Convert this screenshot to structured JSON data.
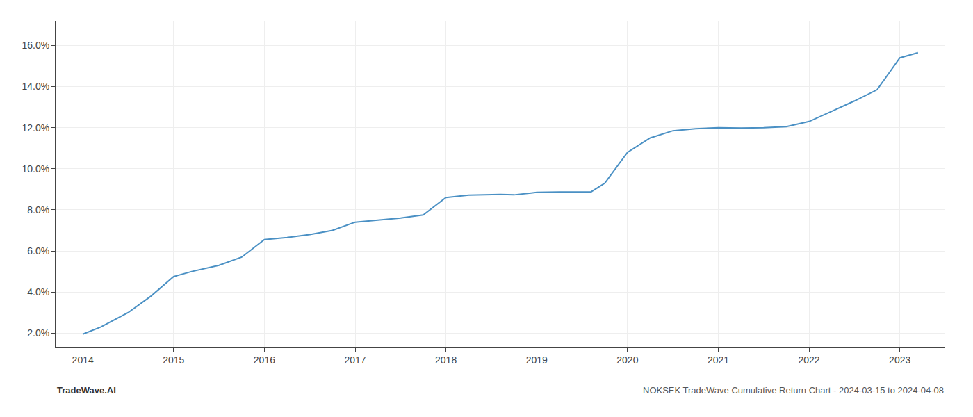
{
  "chart_data": {
    "type": "line",
    "x": [
      2014.0,
      2014.2,
      2014.5,
      2014.75,
      2015.0,
      2015.2,
      2015.5,
      2015.75,
      2016.0,
      2016.25,
      2016.5,
      2016.75,
      2017.0,
      2017.25,
      2017.5,
      2017.75,
      2018.0,
      2018.25,
      2018.5,
      2018.6,
      2018.75,
      2019.0,
      2019.25,
      2019.5,
      2019.6,
      2019.75,
      2020.0,
      2020.25,
      2020.5,
      2020.75,
      2021.0,
      2021.25,
      2021.5,
      2021.75,
      2022.0,
      2022.25,
      2022.5,
      2022.75,
      2023.0,
      2023.2
    ],
    "values": [
      1.95,
      2.3,
      3.0,
      3.8,
      4.75,
      5.0,
      5.3,
      5.7,
      6.55,
      6.65,
      6.8,
      7.0,
      7.4,
      7.5,
      7.6,
      7.75,
      8.6,
      8.72,
      8.75,
      8.75,
      8.73,
      8.85,
      8.87,
      8.87,
      8.88,
      9.3,
      10.8,
      11.5,
      11.85,
      11.95,
      12.0,
      11.98,
      12.0,
      12.05,
      12.3,
      12.8,
      13.3,
      13.85,
      15.4,
      15.65
    ],
    "color": "#4a90c4",
    "xlim": [
      2013.7,
      2023.5
    ],
    "xticks": [
      2014,
      2015,
      2016,
      2017,
      2018,
      2019,
      2020,
      2021,
      2022,
      2023
    ],
    "ylim": [
      1.3,
      17.2
    ],
    "yticks": [
      {
        "value": 2.0,
        "label": "2.0%"
      },
      {
        "value": 4.0,
        "label": "4.0%"
      },
      {
        "value": 6.0,
        "label": "6.0%"
      },
      {
        "value": 8.0,
        "label": "8.0%"
      },
      {
        "value": 10.0,
        "label": "10.0%"
      },
      {
        "value": 12.0,
        "label": "12.0%"
      },
      {
        "value": 14.0,
        "label": "14.0%"
      },
      {
        "value": 16.0,
        "label": "16.0%"
      }
    ],
    "grid": true,
    "annotations": [
      "TradeWave.AI",
      "NOKSEK TradeWave Cumulative Return Chart - 2024-03-15 to 2024-04-08"
    ]
  }
}
